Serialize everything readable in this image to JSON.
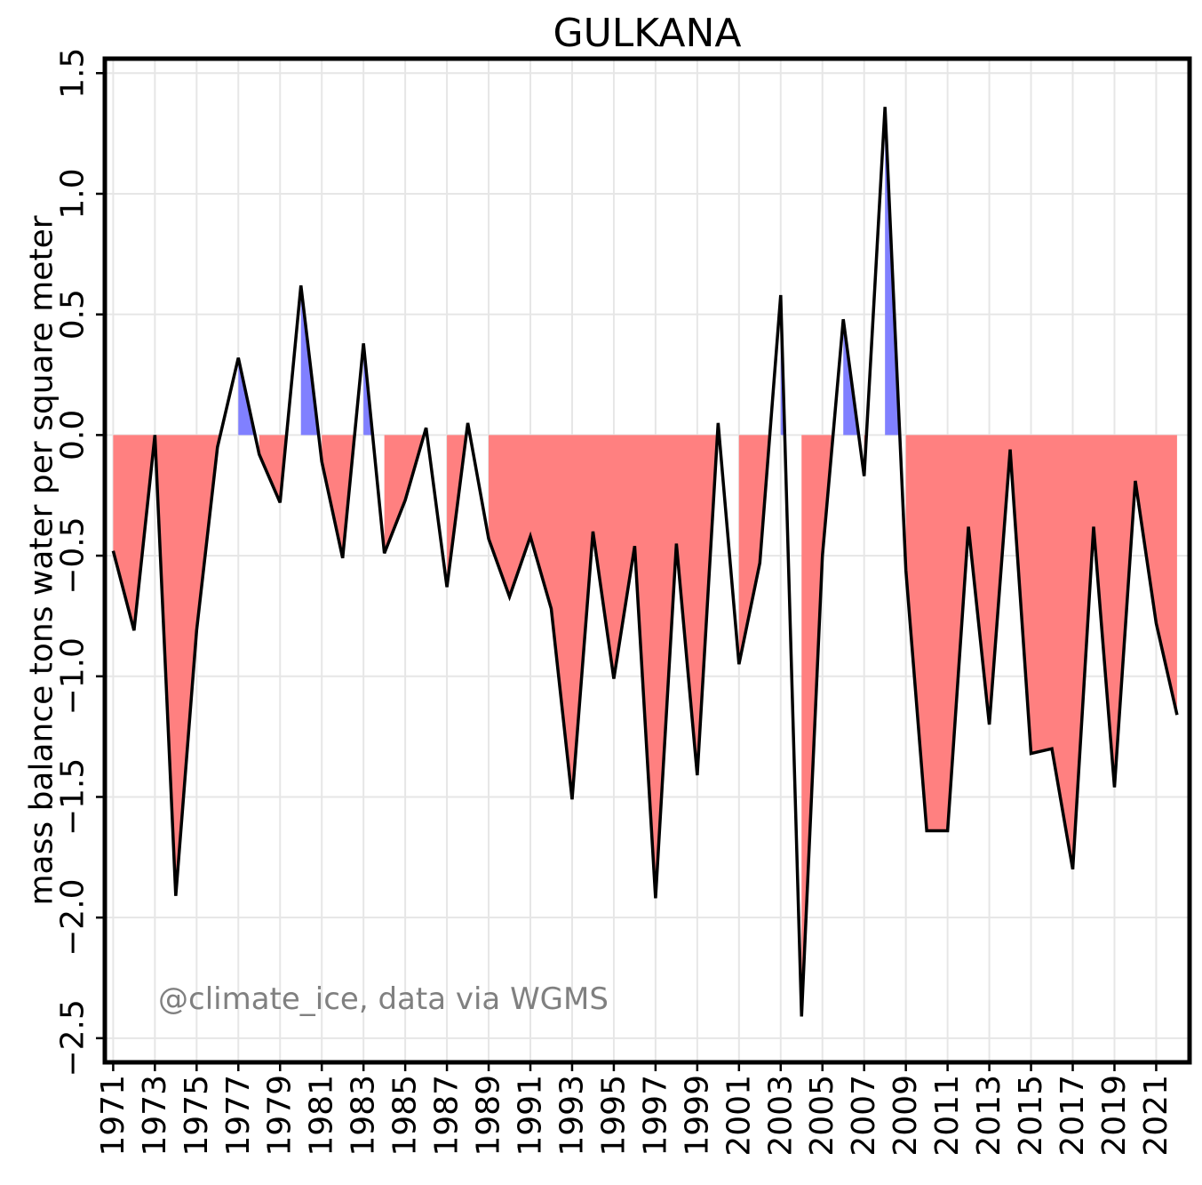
{
  "chart_data": {
    "type": "area",
    "title": "GULKANA",
    "xlabel": "",
    "ylabel": "mass balance tons water per square meter",
    "annotation": "@climate_ice, data via WGMS",
    "xlim": [
      1970.6,
      2022.6
    ],
    "ylim": [
      -2.6,
      1.56
    ],
    "grid": true,
    "x_ticks": [
      1971,
      1973,
      1975,
      1977,
      1979,
      1981,
      1983,
      1985,
      1987,
      1989,
      1991,
      1993,
      1995,
      1997,
      1999,
      2001,
      2003,
      2005,
      2007,
      2009,
      2011,
      2013,
      2015,
      2017,
      2019,
      2021
    ],
    "y_ticks": [
      -2.5,
      -2.0,
      -1.5,
      -1.0,
      -0.5,
      0.0,
      0.5,
      1.0,
      1.5
    ],
    "y_tick_labels": [
      "−2.5",
      "−2.0",
      "−1.5",
      "−1.0",
      "−0.5",
      "0.0",
      "0.5",
      "1.0",
      "1.5"
    ],
    "colors": {
      "positive": "#8080ff",
      "negative": "#ff8080",
      "line": "#000000",
      "grid": "#e6e6e6"
    },
    "x": [
      1971,
      1972,
      1973,
      1974,
      1975,
      1976,
      1977,
      1978,
      1979,
      1980,
      1981,
      1982,
      1983,
      1984,
      1985,
      1986,
      1987,
      1988,
      1989,
      1990,
      1991,
      1992,
      1993,
      1994,
      1995,
      1996,
      1997,
      1998,
      1999,
      2000,
      2001,
      2002,
      2003,
      2004,
      2005,
      2006,
      2007,
      2008,
      2009,
      2010,
      2011,
      2012,
      2013,
      2014,
      2015,
      2016,
      2017,
      2018,
      2019,
      2020,
      2021,
      2022
    ],
    "series": [
      {
        "values": [
          -0.48,
          -0.81,
          0.0,
          -1.91,
          -0.81,
          -0.05,
          0.32,
          -0.08,
          -0.28,
          0.62,
          -0.11,
          -0.51,
          0.38,
          -0.49,
          -0.27,
          0.03,
          -0.63,
          0.05,
          -0.43,
          -0.67,
          -0.42,
          -0.72,
          -1.51,
          -0.4,
          -1.01,
          -0.46,
          -1.92,
          -0.45,
          -1.41,
          0.05,
          -0.95,
          -0.53,
          0.58,
          -2.41,
          -0.5,
          0.48,
          -0.17,
          1.36,
          -0.56,
          -1.64,
          -1.64,
          -0.38,
          -1.2,
          -0.06,
          -1.32,
          -1.3,
          -1.8,
          -0.38,
          -1.46,
          -0.19,
          -0.78,
          -1.16
        ]
      }
    ]
  }
}
